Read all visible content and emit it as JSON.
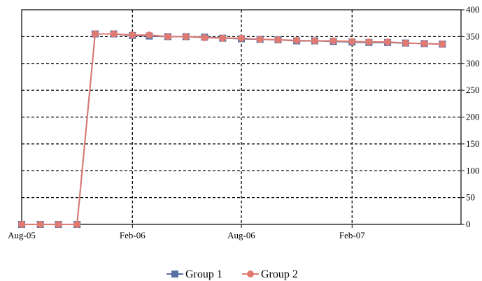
{
  "chart_data": {
    "type": "line",
    "x": [
      "2005-08-01",
      "2005-09-01",
      "2005-10-01",
      "2005-11-01",
      "2005-12-01",
      "2006-01-01",
      "2006-02-01",
      "2006-03-01",
      "2006-04-01",
      "2006-05-01",
      "2006-06-01",
      "2006-07-01",
      "2006-08-01",
      "2006-09-01",
      "2006-10-01",
      "2006-11-01",
      "2006-12-01",
      "2007-01-01",
      "2007-02-01",
      "2007-03-01",
      "2007-04-01",
      "2007-05-01",
      "2007-06-01",
      "2007-07-01"
    ],
    "x_ticks": [
      {
        "date": "2005-08-01",
        "label": "Aug-05"
      },
      {
        "date": "2006-02-01",
        "label": "Feb-06"
      },
      {
        "date": "2006-08-01",
        "label": "Aug-06"
      },
      {
        "date": "2007-02-01",
        "label": "Feb-07"
      }
    ],
    "x_range": [
      "2005-08-01",
      "2007-08-01"
    ],
    "y_ticks": [
      0,
      50,
      100,
      150,
      200,
      250,
      300,
      350,
      400
    ],
    "ylim": [
      0,
      400
    ],
    "y_axis_side": "right",
    "grid": "dashed",
    "legend_position": "bottom",
    "series": [
      {
        "name": "Group 1",
        "color": "#5b70a4",
        "marker": "square",
        "values": [
          0,
          0,
          0,
          0,
          355,
          355,
          352,
          351,
          350,
          350,
          349,
          347,
          346,
          345,
          344,
          342,
          342,
          341,
          340,
          339,
          339,
          338,
          337,
          336
        ]
      },
      {
        "name": "Group 2",
        "color": "#e07b73",
        "marker": "circle",
        "values": [
          0,
          0,
          0,
          0,
          355,
          355,
          353,
          353,
          350,
          350,
          348,
          347,
          347,
          345,
          344,
          343,
          342,
          342,
          341,
          340,
          340,
          338,
          337,
          336
        ]
      }
    ]
  }
}
